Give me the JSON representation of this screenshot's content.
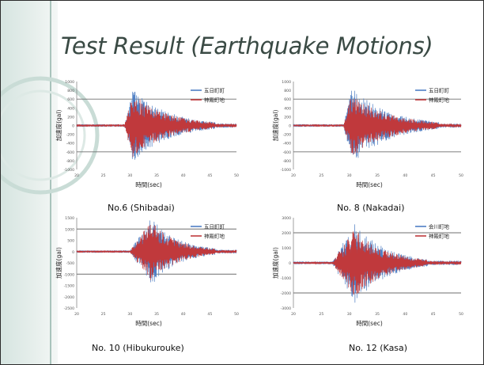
{
  "title": "Test Result (Earthquake Motions)",
  "colors": {
    "series1": "#4f7fc4",
    "series2": "#c0393c"
  },
  "chart_data": [
    {
      "type": "line",
      "caption": "No.6 (Shibadai)",
      "title": "",
      "xlabel": "時間(sec)",
      "ylabel": "加速度(gal)",
      "xlim": [
        20,
        50
      ],
      "ylim": [
        -1000,
        1000
      ],
      "xticks": [
        "20",
        "25",
        "30",
        "35",
        "40",
        "45",
        "50"
      ],
      "yticks": [
        "1000",
        "800",
        "600",
        "400",
        "200",
        "0",
        "-200",
        "-400",
        "-600",
        "-800",
        "-1000"
      ],
      "gridlines": [
        600,
        0,
        -600
      ],
      "legend_position": "top-right",
      "burst_start": 29,
      "burst_peak": 30.5,
      "burst_end": 46,
      "series": [
        {
          "name": "五日町町",
          "peak": 850,
          "color": "#4f7fc4"
        },
        {
          "name": "神殿町地",
          "peak": 750,
          "color": "#c0393c"
        }
      ]
    },
    {
      "type": "line",
      "caption": "No. 8 (Nakadai)",
      "title": "",
      "xlabel": "時間(sec)",
      "ylabel": "加速度(gal)",
      "xlim": [
        20,
        50
      ],
      "ylim": [
        -1000,
        1000
      ],
      "xticks": [
        "20",
        "25",
        "30",
        "35",
        "40",
        "45",
        "50"
      ],
      "yticks": [
        "1000",
        "800",
        "600",
        "400",
        "200",
        "0",
        "-200",
        "-400",
        "-600",
        "-800",
        "-1000"
      ],
      "gridlines": [
        600,
        0,
        -600
      ],
      "legend_position": "top-right",
      "burst_start": 29,
      "burst_peak": 30.5,
      "burst_end": 46,
      "series": [
        {
          "name": "五日町町",
          "peak": 880,
          "color": "#4f7fc4"
        },
        {
          "name": "神殿町地",
          "peak": 750,
          "color": "#c0393c"
        }
      ]
    },
    {
      "type": "line",
      "caption": "No. 10 (Hibukurouke)",
      "title": "",
      "xlabel": "時間(sec)",
      "ylabel": "加速度(gal)",
      "xlim": [
        20,
        50
      ],
      "ylim": [
        -2500,
        1500
      ],
      "xticks": [
        "20",
        "25",
        "30",
        "35",
        "40",
        "45",
        "50"
      ],
      "yticks": [
        "1500",
        "1000",
        "500",
        "0",
        "-500",
        "-1000",
        "-1500",
        "-2000",
        "-2500"
      ],
      "gridlines": [
        1000,
        0,
        -1000
      ],
      "legend_position": "top-right",
      "burst_start": 30,
      "burst_peak": 34,
      "burst_end": 46,
      "series": [
        {
          "name": "五日町町",
          "peak": 1500,
          "color": "#4f7fc4"
        },
        {
          "name": "神殿町地",
          "peak": 1350,
          "color": "#c0393c"
        }
      ]
    },
    {
      "type": "line",
      "caption": "No. 12 (Kasa)",
      "title": "",
      "xlabel": "時間(sec)",
      "ylabel": "加速度(gal)",
      "xlim": [
        20,
        50
      ],
      "ylim": [
        -3000,
        3000
      ],
      "xticks": [
        "20",
        "25",
        "30",
        "35",
        "40",
        "45",
        "50"
      ],
      "yticks": [
        "3000",
        "2000",
        "1000",
        "0",
        "-1000",
        "-2000",
        "-3000"
      ],
      "gridlines": [
        2000,
        0,
        -2000
      ],
      "legend_position": "top-right",
      "burst_start": 27,
      "burst_peak": 31,
      "burst_end": 44,
      "series": [
        {
          "name": "会川町地",
          "peak": 2700,
          "color": "#4f7fc4"
        },
        {
          "name": "神殿町地",
          "peak": 2300,
          "color": "#c0393c"
        }
      ]
    }
  ]
}
